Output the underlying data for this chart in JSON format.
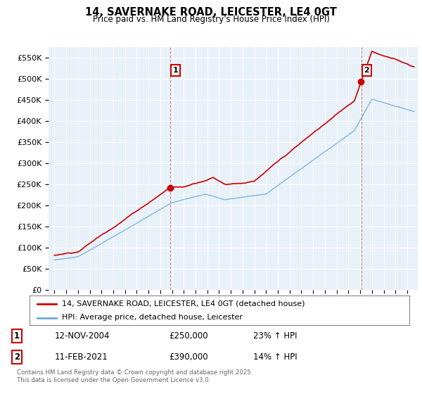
{
  "title": "14, SAVERNAKE ROAD, LEICESTER, LE4 0GT",
  "subtitle": "Price paid vs. HM Land Registry's House Price Index (HPI)",
  "ylim": [
    0,
    575000
  ],
  "yticks": [
    0,
    50000,
    100000,
    150000,
    200000,
    250000,
    300000,
    350000,
    400000,
    450000,
    500000,
    550000
  ],
  "ytick_labels": [
    "£0",
    "£50K",
    "£100K",
    "£150K",
    "£200K",
    "£250K",
    "£300K",
    "£350K",
    "£400K",
    "£450K",
    "£500K",
    "£550K"
  ],
  "hpi_color": "#6baed6",
  "price_color": "#cc0000",
  "chart_bg_color": "#ddeeff",
  "ann1_x": 2004.87,
  "ann1_y": 250000,
  "ann1_label": "1",
  "ann2_x": 2021.12,
  "ann2_y": 390000,
  "ann2_label": "2",
  "legend_line1": "14, SAVERNAKE ROAD, LEICESTER, LE4 0GT (detached house)",
  "legend_line2": "HPI: Average price, detached house, Leicester",
  "note1_label": "1",
  "note1_date": "12-NOV-2004",
  "note1_price": "£250,000",
  "note1_hpi": "23% ↑ HPI",
  "note2_label": "2",
  "note2_date": "11-FEB-2021",
  "note2_price": "£390,000",
  "note2_hpi": "14% ↑ HPI",
  "footer": "Contains HM Land Registry data © Crown copyright and database right 2025.\nThis data is licensed under the Open Government Licence v3.0.",
  "grid_color": "#cccccc",
  "xlim_left": 1994.5,
  "xlim_right": 2025.9
}
